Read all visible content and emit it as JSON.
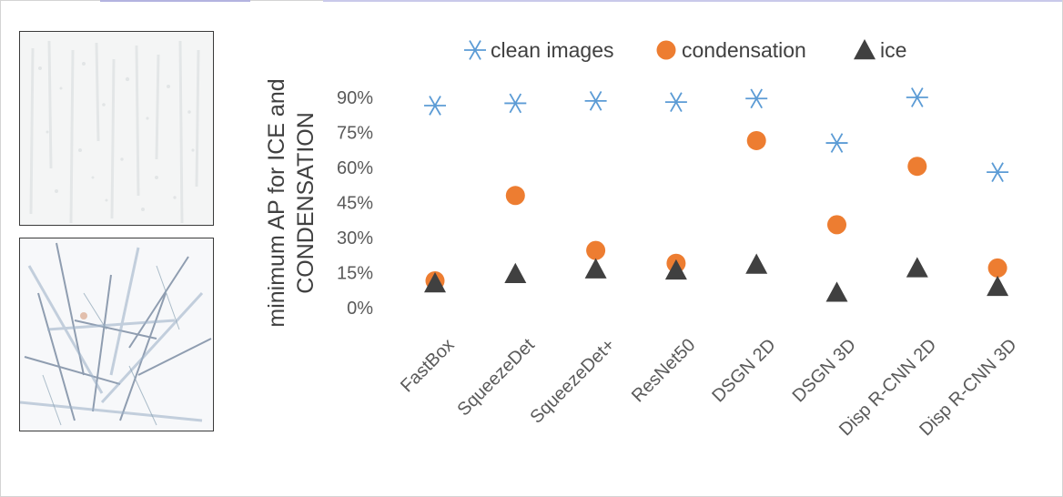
{
  "colors": {
    "clean_images": "#5b9bd5",
    "condensation": "#ed7d31",
    "ice": "#404040"
  },
  "photos": [
    {
      "name": "condensation-photo"
    },
    {
      "name": "ice-photo"
    }
  ],
  "chart_data": {
    "type": "scatter",
    "title": "",
    "xlabel": "",
    "ylabel": [
      "minimum AP for ICE and",
      "CONDENSATION"
    ],
    "ylim": [
      0,
      90
    ],
    "y_ticks": [
      "0%",
      "15%",
      "30%",
      "45%",
      "60%",
      "75%",
      "90%"
    ],
    "y_tick_values": [
      0,
      15,
      30,
      45,
      60,
      75,
      90
    ],
    "grid": false,
    "legend_position": "top",
    "categories": [
      "FastBox",
      "SqueezeDet",
      "SqueezeDet+",
      "ResNet50",
      "DSGN 2D",
      "DSGN 3D",
      "Disp R-CNN 2D",
      "Disp R-CNN 3D"
    ],
    "series": [
      {
        "name": "clean images",
        "marker": "asterisk",
        "values": [
          86.5,
          87.5,
          88.5,
          88,
          89.5,
          70.5,
          90,
          58
        ]
      },
      {
        "name": "condensation",
        "marker": "circle",
        "values": [
          11.5,
          48,
          24.5,
          19,
          71.5,
          35.5,
          60.5,
          17
        ]
      },
      {
        "name": "ice",
        "marker": "triangle",
        "values": [
          10.5,
          14.5,
          16.5,
          16,
          18.5,
          6.5,
          17,
          9
        ]
      }
    ]
  }
}
